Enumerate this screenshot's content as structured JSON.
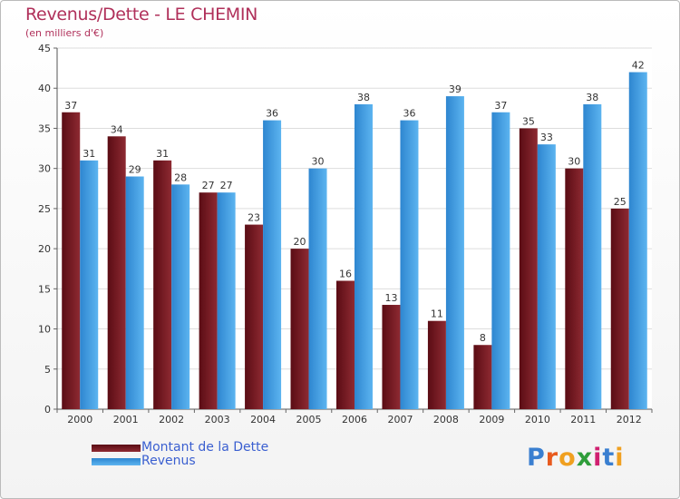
{
  "chart_data": {
    "type": "bar",
    "title": "Revenus/Dette - LE CHEMIN",
    "subtitle": "(en milliers d'€)",
    "categories": [
      "2000",
      "2001",
      "2002",
      "2003",
      "2004",
      "2005",
      "2006",
      "2007",
      "2008",
      "2009",
      "2010",
      "2011",
      "2012"
    ],
    "series": [
      {
        "name": "Montant de la Dette",
        "values": [
          37,
          34,
          31,
          27,
          23,
          20,
          16,
          13,
          11,
          8,
          35,
          30,
          25
        ],
        "color": "#7a1a22"
      },
      {
        "name": "Revenus",
        "values": [
          31,
          29,
          28,
          27,
          36,
          30,
          38,
          36,
          39,
          37,
          33,
          38,
          42
        ],
        "color": "#4aa3e6"
      }
    ],
    "ylim": [
      0,
      45
    ],
    "yticks": [
      0,
      5,
      10,
      15,
      20,
      25,
      30,
      35,
      40,
      45
    ],
    "grid": true,
    "legend": "bottom-left",
    "data_labels": true
  },
  "logo": {
    "text": "Proxiti",
    "colors": [
      "#3a7fd0",
      "#e85a1e",
      "#f0a020",
      "#2e9d3a",
      "#d02070",
      "#3a7fd0",
      "#f0a020"
    ]
  }
}
